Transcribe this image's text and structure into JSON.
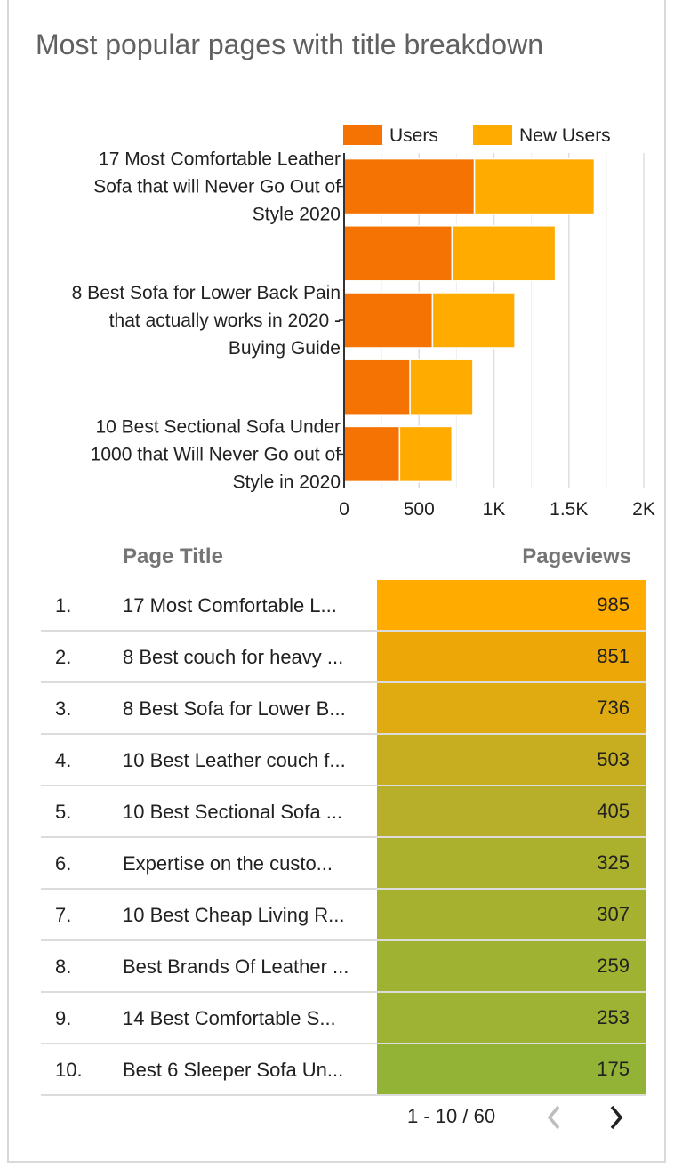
{
  "title": "Most popular pages with title breakdown",
  "chart_data": {
    "type": "bar",
    "orientation": "horizontal",
    "stacked": true,
    "categories": [
      "17 Most Comfortable Leather Sofa that will Never Go Out of Style 2020",
      "",
      "8 Best Sofa for Lower Back Pain that actually works in 2020 - Buying Guide",
      "",
      "10 Best Sectional Sofa Under 1000 that Will Never Go out of Style in 2020"
    ],
    "category_label_lines": [
      [
        "17 Most Comfortable Leather",
        "Sofa that will Never Go Out of",
        "Style 2020"
      ],
      [],
      [
        "8 Best Sofa for Lower Back Pain",
        "that actually works in 2020 -",
        "Buying Guide"
      ],
      [],
      [
        "10 Best Sectional Sofa Under",
        "1000 that Will Never Go out of",
        "Style in 2020"
      ]
    ],
    "series": [
      {
        "name": "Users",
        "color": "#f57302",
        "values": [
          870,
          720,
          590,
          440,
          370
        ]
      },
      {
        "name": "New Users",
        "color": "#ffab00",
        "values": [
          800,
          690,
          550,
          420,
          350
        ]
      }
    ],
    "xlim": [
      0,
      2000
    ],
    "xticks": [
      0,
      500,
      1000,
      1500,
      2000
    ],
    "xtick_labels": [
      "0",
      "500",
      "1K",
      "1.5K",
      "2K"
    ],
    "grid": true,
    "legend_position": "top-right"
  },
  "table": {
    "headers": {
      "title": "Page Title",
      "pageviews": "Pageviews"
    },
    "rows": [
      {
        "index": "1.",
        "title": "17 Most Comfortable L...",
        "pageviews": "985",
        "color": "#ffab00"
      },
      {
        "index": "2.",
        "title": "8 Best couch for heavy ...",
        "pageviews": "851",
        "color": "#eda808"
      },
      {
        "index": "3.",
        "title": "8 Best Sofa for Lower B...",
        "pageviews": "736",
        "color": "#dfab11"
      },
      {
        "index": "4.",
        "title": "10 Best Leather couch f...",
        "pageviews": "503",
        "color": "#c7ae21"
      },
      {
        "index": "5.",
        "title": "10 Best Sectional Sofa ...",
        "pageviews": "405",
        "color": "#b7ae29"
      },
      {
        "index": "6.",
        "title": "Expertise on the custo...",
        "pageviews": "325",
        "color": "#abb02d"
      },
      {
        "index": "7.",
        "title": "10 Best Cheap Living R...",
        "pageviews": "307",
        "color": "#a6b12f"
      },
      {
        "index": "8.",
        "title": "Best Brands Of Leather ...",
        "pageviews": "259",
        "color": "#9fb232"
      },
      {
        "index": "9.",
        "title": "14 Best Comfortable S...",
        "pageviews": "253",
        "color": "#9eb333"
      },
      {
        "index": "10.",
        "title": "Best 6 Sleeper Sofa Un...",
        "pageviews": "175",
        "color": "#93b336"
      }
    ]
  },
  "pagination": {
    "label": "1 - 10 / 60",
    "prev_icon": "chevron-left-icon",
    "next_icon": "chevron-right-icon"
  }
}
